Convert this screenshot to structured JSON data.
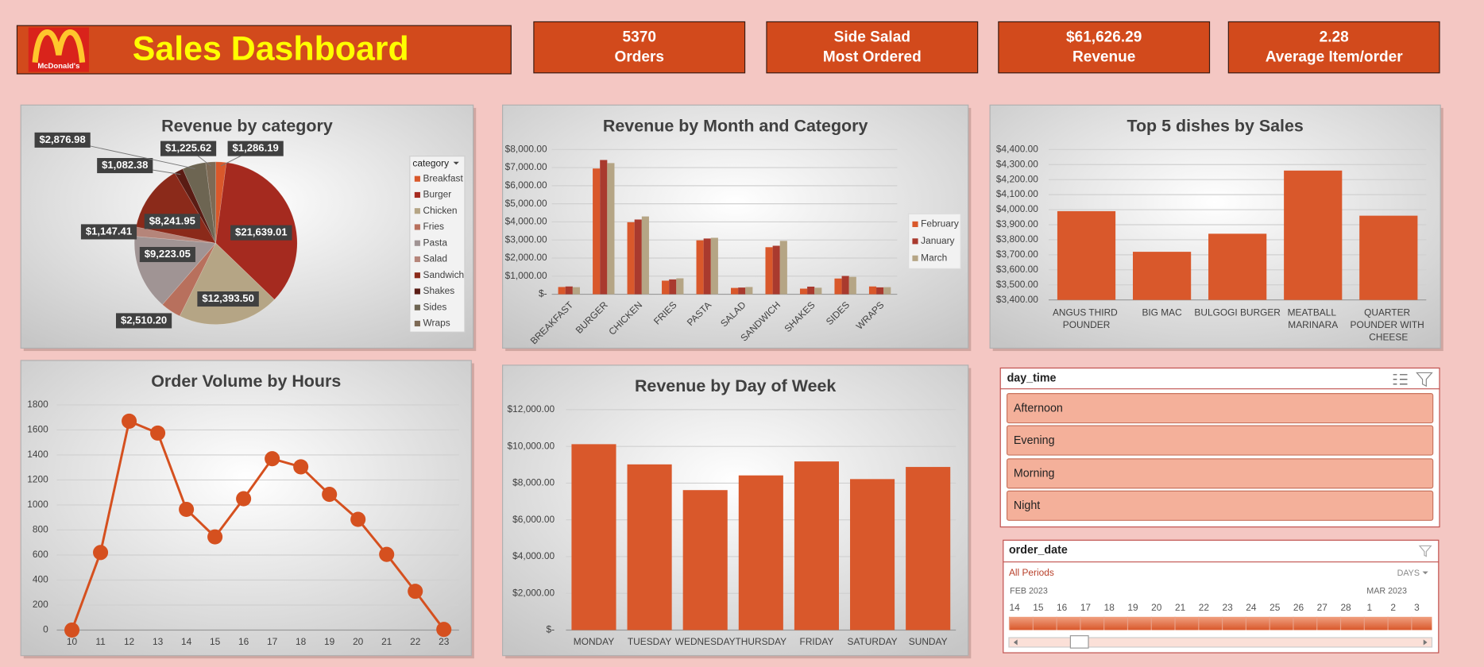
{
  "header": {
    "logo": "McDonald's",
    "title": "Sales Dashboard"
  },
  "kpis": [
    {
      "value": "5370",
      "label": "Orders"
    },
    {
      "value": "Side Salad",
      "label": "Most Ordered"
    },
    {
      "value": "$61,626.29",
      "label": "Revenue"
    },
    {
      "value": "2.28",
      "label": "Average Item/order"
    }
  ],
  "chart_data": [
    {
      "type": "pie",
      "title": "Revenue by category",
      "legend_title": "category",
      "categories": [
        "Breakfast",
        "Burger",
        "Chicken",
        "Fries",
        "Pasta",
        "Salad",
        "Sandwich",
        "Shakes",
        "Sides",
        "Wraps"
      ],
      "values": [
        1286.19,
        21639.01,
        12393.5,
        2510.2,
        9223.05,
        1147.41,
        8241.95,
        1082.38,
        2876.98,
        1225.62
      ],
      "value_labels": [
        "$1,286.19",
        "$21,639.01",
        "$12,393.50",
        "$2,510.20",
        "$9,223.05",
        "$1,147.41",
        "$8,241.95",
        "$1,082.38",
        "$2,876.98",
        "$1,225.62"
      ],
      "colors": [
        "#d9582b",
        "#a52a1f",
        "#b5a585",
        "#b8705d",
        "#a09494",
        "#b5857a",
        "#8b2a1a",
        "#5a1c14",
        "#6d6552",
        "#7d6a55"
      ]
    },
    {
      "type": "bar",
      "title": "Revenue by Month and Category",
      "categories": [
        "BREAKFAST",
        "BURGER",
        "CHICKEN",
        "FRIES",
        "PASTA",
        "SALAD",
        "SANDWICH",
        "SHAKES",
        "SIDES",
        "WRAPS"
      ],
      "series": [
        {
          "name": "February",
          "color": "#d9582b",
          "values": [
            400,
            6950,
            3980,
            750,
            2980,
            350,
            2600,
            310,
            870,
            430
          ]
        },
        {
          "name": "January",
          "color": "#a93a2e",
          "values": [
            430,
            7420,
            4130,
            820,
            3080,
            370,
            2680,
            420,
            1010,
            380
          ]
        },
        {
          "name": "March",
          "color": "#b5a585",
          "values": [
            390,
            7250,
            4300,
            880,
            3120,
            400,
            2950,
            360,
            960,
            390
          ]
        }
      ],
      "ylim": [
        0,
        8000
      ],
      "yticks": [
        {
          "value": 0,
          "label": "$-"
        },
        {
          "value": 1000,
          "label": "$1,000.00"
        },
        {
          "value": 2000,
          "label": "$2,000.00"
        },
        {
          "value": 3000,
          "label": "$3,000.00"
        },
        {
          "value": 4000,
          "label": "$4,000.00"
        },
        {
          "value": 5000,
          "label": "$5,000.00"
        },
        {
          "value": 6000,
          "label": "$6,000.00"
        },
        {
          "value": 7000,
          "label": "$7,000.00"
        },
        {
          "value": 8000,
          "label": "$8,000.00"
        }
      ],
      "grid": true
    },
    {
      "type": "bar",
      "title": "Top 5 dishes by Sales",
      "categories": [
        "ANGUS THIRD POUNDER",
        "BIG MAC",
        "BULGOGI BURGER",
        "MEATBALL MARINARA",
        "QUARTER POUNDER WITH CHEESE"
      ],
      "values": [
        3990,
        3720,
        3840,
        4260,
        3960
      ],
      "color": "#d9582b",
      "ylim": [
        3400,
        4400
      ],
      "yticks": [
        {
          "value": 3400,
          "label": "$3,400.00"
        },
        {
          "value": 3500,
          "label": "$3,500.00"
        },
        {
          "value": 3600,
          "label": "$3,600.00"
        },
        {
          "value": 3700,
          "label": "$3,700.00"
        },
        {
          "value": 3800,
          "label": "$3,800.00"
        },
        {
          "value": 3900,
          "label": "$3,900.00"
        },
        {
          "value": 4000,
          "label": "$4,000.00"
        },
        {
          "value": 4100,
          "label": "$4,100.00"
        },
        {
          "value": 4200,
          "label": "$4,200.00"
        },
        {
          "value": 4300,
          "label": "$4,300.00"
        },
        {
          "value": 4400,
          "label": "$4,400.00"
        }
      ],
      "grid": true
    },
    {
      "type": "line",
      "title": "Order Volume by Hours",
      "categories": [
        "10",
        "11",
        "12",
        "13",
        "14",
        "15",
        "16",
        "17",
        "18",
        "19",
        "20",
        "21",
        "22",
        "23"
      ],
      "values": [
        0,
        620,
        1670,
        1575,
        965,
        745,
        1050,
        1370,
        1305,
        1085,
        885,
        605,
        310,
        5
      ],
      "color": "#d5501f",
      "ylim": [
        0,
        1800
      ],
      "yticks": [
        0,
        200,
        400,
        600,
        800,
        1000,
        1200,
        1400,
        1600,
        1800
      ],
      "grid": true
    },
    {
      "type": "bar",
      "title": "Revenue by Day of Week",
      "categories": [
        "MONDAY",
        "TUESDAY",
        "WEDNESDAY",
        "THURSDAY",
        "FRIDAY",
        "SATURDAY",
        "SUNDAY"
      ],
      "values": [
        10120,
        9020,
        7620,
        8420,
        9180,
        8220,
        8880
      ],
      "color": "#d9582b",
      "ylim": [
        0,
        12000
      ],
      "yticks": [
        {
          "value": 0,
          "label": "$-"
        },
        {
          "value": 2000,
          "label": "$2,000.00"
        },
        {
          "value": 4000,
          "label": "$4,000.00"
        },
        {
          "value": 6000,
          "label": "$6,000.00"
        },
        {
          "value": 8000,
          "label": "$8,000.00"
        },
        {
          "value": 10000,
          "label": "$10,000.00"
        },
        {
          "value": 12000,
          "label": "$12,000.00"
        }
      ],
      "grid": true
    }
  ],
  "slicers": {
    "day_time": {
      "title": "day_time",
      "items": [
        "Afternoon",
        "Evening",
        "Morning",
        "Night"
      ]
    },
    "order_date": {
      "title": "order_date",
      "period": "All Periods",
      "unit": "DAYS",
      "months": [
        "FEB 2023",
        "MAR 2023"
      ],
      "days": [
        14,
        15,
        16,
        17,
        18,
        19,
        20,
        21,
        22,
        23,
        24,
        25,
        26,
        27,
        28,
        1,
        2,
        3
      ]
    }
  }
}
